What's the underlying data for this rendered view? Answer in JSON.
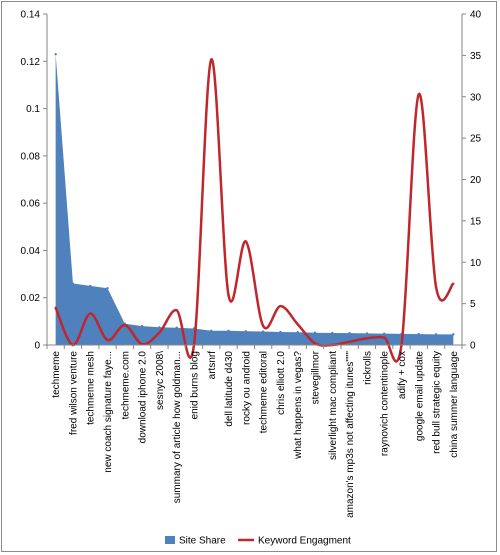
{
  "chart_data": {
    "type": "area+line",
    "categories": [
      "techmeme",
      "fred wilson venture",
      "techmeme mesh",
      "new coach signature faye...",
      "techmeme.com",
      "download iphone 2.0",
      "sesnyc 2008\\",
      "summary of article how goldman...",
      "enid burns blog",
      "artsnrf",
      "dell latitude d430",
      "rocky ou android",
      "techmeme editoral",
      "chris elliott 2.0",
      "what happens in vegas?",
      "stevegillmor",
      "silverlight mac compliant",
      "amazon's mp3s not affecting itunes\"\"\"",
      "rickrolls",
      "raynovich contentinople",
      "adify + cox",
      "google email update",
      "red bull strategic equity",
      "china summer language"
    ],
    "series": [
      {
        "name": "Site Share",
        "axis": "left",
        "kind": "area",
        "color": "#4f81bd",
        "values": [
          0.123,
          0.026,
          0.025,
          0.024,
          0.009,
          0.008,
          0.0075,
          0.0073,
          0.007,
          0.006,
          0.006,
          0.0058,
          0.0057,
          0.0055,
          0.0054,
          0.0052,
          0.0051,
          0.005,
          0.0049,
          0.0048,
          0.0047,
          0.0046,
          0.0045,
          0.0045
        ]
      },
      {
        "name": "Keyword Engagment",
        "axis": "right",
        "kind": "smooth-line",
        "color": "#c0272d",
        "values": [
          4.5,
          0,
          3.8,
          0.6,
          2.4,
          0.1,
          1.5,
          4.2,
          0,
          34.5,
          6,
          12.5,
          2.3,
          4.7,
          2.5,
          0.2,
          0,
          0.4,
          0.8,
          0.9,
          0,
          30.3,
          7,
          7.4
        ]
      }
    ],
    "y_left": {
      "min": 0,
      "max": 0.14,
      "ticks": [
        0,
        0.02,
        0.04,
        0.06,
        0.08,
        0.1,
        0.12,
        0.14
      ]
    },
    "y_right": {
      "min": 0,
      "max": 40,
      "ticks": [
        0,
        5,
        10,
        15,
        20,
        25,
        30,
        35,
        40
      ]
    },
    "grid": false,
    "legend": "bottom"
  }
}
